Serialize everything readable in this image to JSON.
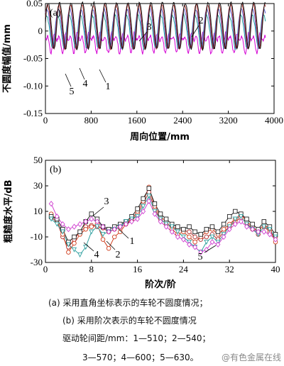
{
  "chart_data": [
    {
      "type": "line",
      "panel_label": "(a)",
      "xlabel": "周向位置/mm",
      "ylabel": "不圆度幅值/mm",
      "xlim": [
        0,
        4000
      ],
      "ylim": [
        -0.15,
        0.05
      ],
      "x_ticks": [
        0,
        800,
        1600,
        2400,
        3200,
        4000
      ],
      "x_tick_labels": [
        "0",
        "800",
        "1600",
        "2400",
        "3200",
        "4000"
      ],
      "y_ticks": [
        0.05,
        0,
        -0.05,
        -0.1,
        -0.15
      ],
      "y_tick_labels": [
        "0.05",
        "0",
        "-0.05",
        "-0.10",
        "-0.15"
      ],
      "annotations": [
        "1",
        "2",
        "3",
        "4",
        "5"
      ],
      "series": [
        {
          "label": "1",
          "color": "#d400d4",
          "period": 200,
          "phase": 0.3,
          "amp": 0.012,
          "offset": -0.018,
          "sec_amp": 0.01,
          "noise": 0.006
        },
        {
          "label": "2",
          "color": "#111111",
          "period": 200,
          "phase": 0.0,
          "amp": 0.042,
          "offset": 0.012,
          "sec_amp": 0.003,
          "noise": 0.004
        },
        {
          "label": "3",
          "color": "#b03030",
          "period": 200,
          "phase": 0.05,
          "amp": 0.04,
          "offset": 0.01,
          "sec_amp": 0.003,
          "noise": 0.004
        },
        {
          "label": "4",
          "color": "#20a0a0",
          "period": 200,
          "phase": 0.15,
          "amp": 0.03,
          "offset": 0.002,
          "sec_amp": 0.004,
          "noise": 0.005
        },
        {
          "label": "5",
          "color": "#5a5ad0",
          "period": 200,
          "phase": 0.1,
          "amp": 0.035,
          "offset": 0.008,
          "sec_amp": 0.004,
          "noise": 0.004
        }
      ]
    },
    {
      "type": "line",
      "panel_label": "(b)",
      "xlabel": "阶次/阶",
      "ylabel": "粗糙度水平/dB",
      "xlim": [
        0,
        40
      ],
      "ylim": [
        -30,
        50
      ],
      "x_ticks": [
        0,
        8,
        16,
        24,
        32,
        40
      ],
      "x_tick_labels": [
        "0",
        "8",
        "16",
        "24",
        "32",
        "40"
      ],
      "y_ticks": [
        50,
        30,
        10,
        -10,
        -30
      ],
      "y_tick_labels": [
        "50",
        "30",
        "10",
        "-10",
        "-30"
      ],
      "annotations": [
        "1",
        "2",
        "3",
        "4",
        "5"
      ],
      "x": [
        1,
        2,
        3,
        4,
        5,
        6,
        7,
        8,
        9,
        10,
        11,
        12,
        13,
        14,
        15,
        16,
        17,
        18,
        19,
        20,
        21,
        22,
        23,
        24,
        25,
        26,
        27,
        28,
        29,
        30,
        31,
        32,
        33,
        34,
        35,
        36,
        37,
        38,
        39,
        40
      ],
      "series": [
        {
          "label": "1",
          "color": "#b03030",
          "marker": "circle",
          "values": [
            5,
            2,
            -10,
            -18,
            -12,
            -6,
            -2,
            -1,
            -2,
            -3,
            -6,
            -4,
            -2,
            0,
            3,
            8,
            16,
            25,
            12,
            4,
            0,
            -2,
            -4,
            -5,
            -6,
            -10,
            -12,
            -10,
            -8,
            -12,
            -6,
            -2,
            2,
            5,
            1,
            -4,
            -8,
            -2,
            -6,
            -10
          ]
        },
        {
          "label": "2",
          "color": "#d04020",
          "marker": "circle",
          "values": [
            8,
            3,
            -8,
            -22,
            -15,
            -8,
            -4,
            -2,
            0,
            -12,
            -19,
            -10,
            -6,
            0,
            4,
            10,
            18,
            29,
            14,
            6,
            2,
            -4,
            -8,
            -6,
            -10,
            -14,
            -10,
            -6,
            -4,
            -8,
            -4,
            0,
            4,
            8,
            2,
            -2,
            -6,
            0,
            -4,
            -14
          ]
        },
        {
          "label": "3",
          "color": "#222222",
          "marker": "square",
          "values": [
            6,
            4,
            -4,
            -14,
            -10,
            -6,
            2,
            8,
            4,
            -2,
            -4,
            -2,
            0,
            2,
            6,
            12,
            20,
            28,
            16,
            8,
            4,
            0,
            -2,
            -4,
            -2,
            -6,
            -8,
            -4,
            -2,
            -6,
            0,
            6,
            10,
            8,
            4,
            0,
            -4,
            2,
            -2,
            -8
          ]
        },
        {
          "label": "4",
          "color": "#30a0a0",
          "marker": "triangle-down",
          "values": [
            4,
            0,
            -6,
            -16,
            -20,
            -24,
            -18,
            -6,
            -2,
            -8,
            -6,
            -4,
            -2,
            2,
            4,
            6,
            14,
            22,
            10,
            4,
            0,
            -2,
            -6,
            -10,
            -14,
            -18,
            -22,
            -14,
            -10,
            -14,
            -8,
            -2,
            4,
            6,
            0,
            -4,
            -8,
            -2,
            -4,
            -10
          ]
        },
        {
          "label": "5",
          "color": "#d040d0",
          "marker": "diamond",
          "values": [
            16,
            6,
            0,
            -4,
            -2,
            0,
            2,
            4,
            2,
            -2,
            -6,
            -4,
            -2,
            0,
            2,
            4,
            10,
            18,
            8,
            2,
            -2,
            -6,
            -10,
            -12,
            -16,
            -18,
            -22,
            -20,
            -14,
            -16,
            -10,
            -4,
            0,
            2,
            -2,
            -4,
            -6,
            -6,
            -8,
            -12
          ]
        }
      ]
    }
  ],
  "caption": {
    "line1": "(a) 采用直角坐标表示的车轮不圆度情况；",
    "line2": "(b) 采用阶次表示的车轮不圆度情况",
    "line3": "驱动轮间距/mm：1—510；2—540；",
    "line4": "3—570；4—600；5—630。"
  },
  "watermark": "@有色金属在线"
}
